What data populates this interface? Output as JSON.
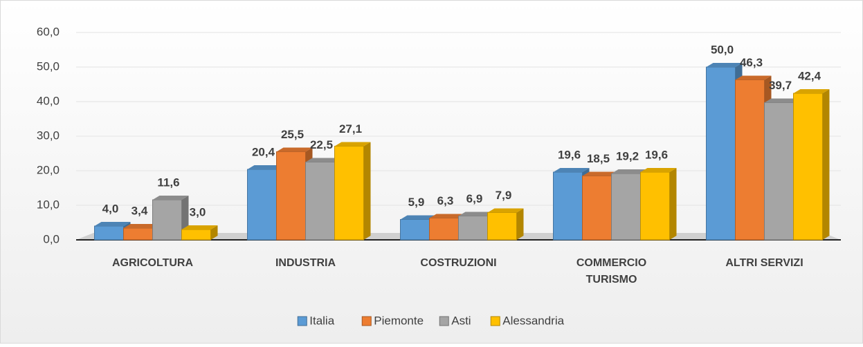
{
  "chart_data": {
    "type": "bar",
    "categories": [
      "AGRICOLTURA",
      "INDUSTRIA",
      "COSTRUZIONI",
      "COMMERCIO\nTURISMO",
      "ALTRI SERVIZI"
    ],
    "series": [
      {
        "name": "Italia",
        "color": "#5b9bd5",
        "values": [
          4.0,
          20.4,
          5.9,
          19.6,
          50.0
        ],
        "value_labels": [
          "4,0",
          "20,4",
          "5,9",
          "19,6",
          "50,0"
        ]
      },
      {
        "name": "Piemonte",
        "color": "#ed7d31",
        "values": [
          3.4,
          25.5,
          6.3,
          18.5,
          46.3
        ],
        "value_labels": [
          "3,4",
          "25,5",
          "6,3",
          "18,5",
          "46,3"
        ]
      },
      {
        "name": "Asti",
        "color": "#a5a5a5",
        "values": [
          11.6,
          22.5,
          6.9,
          19.2,
          39.7
        ],
        "value_labels": [
          "11,6",
          "22,5",
          "6,9",
          "19,2",
          "39,7"
        ]
      },
      {
        "name": "Alessandria",
        "color": "#ffc000",
        "values": [
          3.0,
          27.1,
          7.9,
          19.6,
          42.4
        ],
        "value_labels": [
          "3,0",
          "27,1",
          "7,9",
          "19,6",
          "42,4"
        ]
      }
    ],
    "ylim": [
      0,
      60
    ],
    "yticks": [
      {
        "value": 0,
        "label": "0,0"
      },
      {
        "value": 10,
        "label": "10,0"
      },
      {
        "value": 20,
        "label": "20,0"
      },
      {
        "value": 30,
        "label": "30,0"
      },
      {
        "value": 40,
        "label": "40,0"
      },
      {
        "value": 50,
        "label": "50,0"
      },
      {
        "value": 60,
        "label": "60,0"
      }
    ],
    "grid": true,
    "legend": "bottom"
  }
}
